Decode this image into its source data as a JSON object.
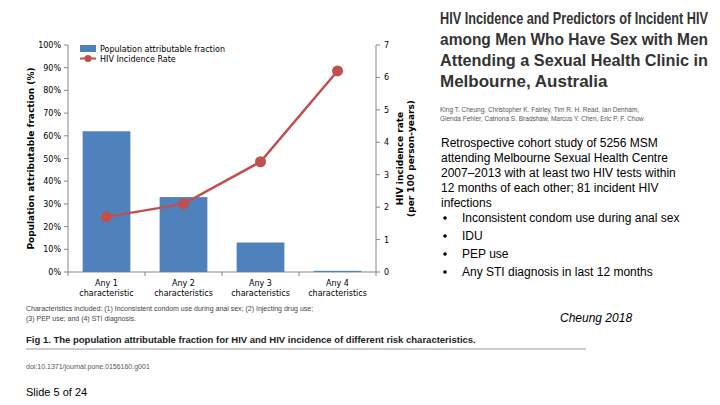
{
  "chart_data": {
    "type": "bar",
    "categories": [
      "Any 1 characteristic",
      "Any 2 characteristics",
      "Any 3 characteristics",
      "Any 4 characteristics"
    ],
    "series": [
      {
        "name": "Population attributable fraction",
        "type": "bar",
        "color": "#4f81bd",
        "values": [
          62,
          33,
          13,
          0.5
        ]
      },
      {
        "name": "HIV Incidence Rate",
        "type": "line",
        "color": "#c0504d",
        "marker": "circle",
        "line_style": "solid",
        "axis": "y2",
        "values": [
          1.7,
          2.1,
          3.4,
          6.2
        ]
      }
    ],
    "y_label": "Population attributable fraction (%)",
    "y2_label": "HIV incidence rate (per 100 person-years)",
    "ylim": [
      0,
      100
    ],
    "yticks": [
      {
        "value": 0,
        "label": "0%"
      },
      {
        "value": 10,
        "label": "10%"
      },
      {
        "value": 20,
        "label": "20%"
      },
      {
        "value": 30,
        "label": "30%"
      },
      {
        "value": 40,
        "label": "40%"
      },
      {
        "value": 50,
        "label": "50%"
      },
      {
        "value": 60,
        "label": "60%"
      },
      {
        "value": 70,
        "label": "70%"
      },
      {
        "value": 80,
        "label": "80%"
      },
      {
        "value": 90,
        "label": "90%"
      },
      {
        "value": 100,
        "label": "100%"
      }
    ],
    "y2lim": [
      0,
      7
    ],
    "y2ticks": [
      0,
      1,
      2,
      3,
      4,
      5,
      6,
      7
    ],
    "legend": "top-left",
    "grid": false
  },
  "paper": {
    "title_lines": [
      "HIV Incidence and Predictors of Incident HIV",
      "among Men Who Have Sex with Men",
      "Attending a Sexual Health Clinic in",
      "Melbourne, Australia"
    ],
    "authors_lines": [
      "King T. Cheung, Christopher K. Fairley, Tim R. H. Read, Ian Denham,",
      "Glenda Fehler, Catriona S. Bradshaw, Marcus Y. Chen, Eric P. F. Chow"
    ],
    "caption_lines": [
      "Characteristics included: (1) Inconsistent condom use during anal sex; (2) Injecting drug use;",
      "(3) PEP use; and (4) STI diagnosis."
    ],
    "figure_title": "Fig 1. The population attributable fraction for HIV and HIV incidence of different risk characteristics.",
    "doi": "doi:10.1371/journal.pone.0156160.g001"
  },
  "slide": {
    "summary_lines": [
      "Retrospective cohort study of 5256 MSM",
      "attending Melbourne Sexual Health Centre",
      "2007–2013 with at least two HIV tests within",
      "12 months of each other; 81 incident HIV",
      "infections"
    ],
    "bullets": [
      "Inconsistent condom use during anal sex",
      "IDU",
      "PEP use",
      "Any STI diagnosis in last 12 months"
    ],
    "citation": "Cheung 2018",
    "footer": "Slide 5 of 24"
  }
}
